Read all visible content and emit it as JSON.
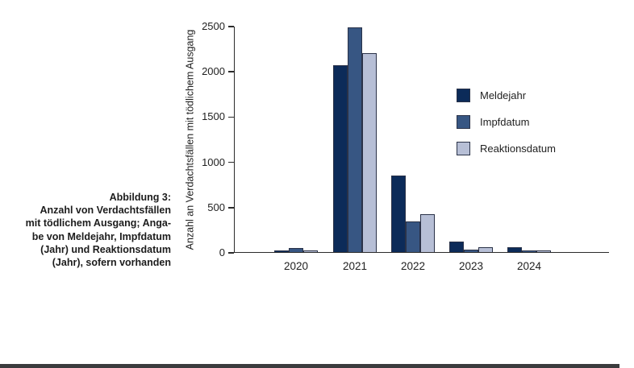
{
  "figure": {
    "caption": "Abbildung 3:\nAnzahl von Verdachtsfällen\nmit tödlichem Ausgang; Anga-\nbe von Meldejahr, Impfdatum\n(Jahr) und Reaktionsdatum\n(Jahr), sofern vorhanden"
  },
  "chart_data": {
    "type": "bar",
    "title": "",
    "xlabel": "",
    "ylabel": "Anzahl an Verdachtsfällen mit tödlichem Ausgang",
    "categories": [
      "2020",
      "2021",
      "2022",
      "2023",
      "2024"
    ],
    "series": [
      {
        "name": "Meldejahr",
        "color": "#0c2b59",
        "values": [
          5,
          2060,
          845,
          120,
          50
        ]
      },
      {
        "name": "Impfdatum",
        "color": "#375683",
        "values": [
          45,
          2480,
          340,
          25,
          5
        ]
      },
      {
        "name": "Reaktionsdatum",
        "color": "#b7bfd6",
        "values": [
          15,
          2200,
          420,
          50,
          10
        ]
      }
    ],
    "ylim": [
      0,
      2500
    ],
    "yticks": [
      0,
      500,
      1000,
      1500,
      2000,
      2500
    ],
    "grid": false,
    "legend_position": "right-inside"
  },
  "colors": {
    "axis": "#2b2b2b",
    "text": "#1f1f1f",
    "bar_border": "#2a3248",
    "bottom_rule": "#3b3b3d"
  }
}
